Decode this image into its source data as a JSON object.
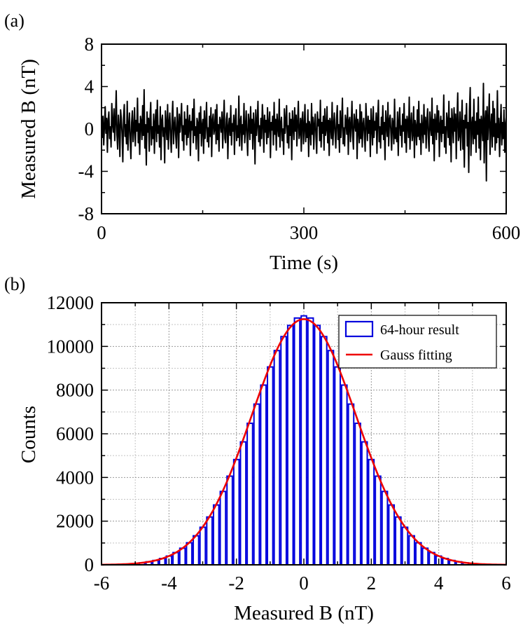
{
  "chart_data": [
    {
      "type": "line",
      "panel_label": "(a)",
      "xlabel": "Time (s)",
      "ylabel": "Measured B (nT)",
      "xlim": [
        0,
        600
      ],
      "ylim": [
        -8,
        8
      ],
      "xticks": [
        0,
        300,
        600
      ],
      "xtick_labels": [
        "0",
        "300",
        "600"
      ],
      "yticks": [
        -8,
        -4,
        0,
        4,
        8
      ],
      "ytick_labels": [
        "-8",
        "-4",
        "0",
        "4",
        "8"
      ],
      "grid": false,
      "series": [
        {
          "name": "Measured B",
          "color": "#000000",
          "values": [
            0.6,
            -0.8,
            1.2,
            -1.5,
            0.3,
            2.1,
            -0.4,
            1.0,
            -2.2,
            0.8,
            1.6,
            -0.9,
            0.2,
            -1.7,
            2.4,
            0.5,
            -0.3,
            1.9,
            -1.1,
            0.7,
            3.6,
            -0.6,
            -1.9,
            1.3,
            0.1,
            -2.6,
            1.8,
            0.9,
            -0.5,
            -3.1,
            1.1,
            2.3,
            -0.7,
            0.4,
            -1.4,
            2.6,
            -2.0,
            0.3,
            1.5,
            -0.9,
            -2.8,
            0.6,
            1.7,
            -1.2,
            0.0,
            2.0,
            -1.6,
            0.8,
            -0.2,
            2.9,
            -1.3,
            0.5,
            -2.4,
            1.2,
            0.7,
            -1.0,
            2.2,
            -0.6,
            3.7,
            -1.8,
            0.4,
            -3.4,
            1.6,
            -0.3,
            1.0,
            -2.1,
            0.9,
            2.5,
            -1.5,
            0.2,
            -0.9,
            1.4,
            -2.3,
            0.6,
            1.8,
            -1.2,
            2.7,
            -0.4,
            0.3,
            -1.7,
            2.1,
            -2.9,
            0.8,
            1.3,
            -0.7,
            0.1,
            -3.2,
            1.7,
            0.4,
            -1.0,
            2.3,
            -1.9,
            0.6,
            1.5,
            -0.8,
            -2.2,
            0.9,
            2.6,
            -1.4,
            0.2,
            1.1,
            -0.6,
            -1.8,
            2.0,
            0.5,
            -2.7,
            1.4,
            -0.3,
            0.8,
            2.4,
            -1.1,
            0.3,
            -2.0,
            1.6,
            -0.5,
            0.9,
            -1.5,
            2.2,
            -0.8,
            0.4,
            1.3,
            -2.5,
            0.7,
            -0.1,
            1.9,
            -1.3,
            2.8,
            -0.6,
            0.2,
            -1.9,
            1.0,
            0.6,
            -3.0,
            1.5,
            -0.4,
            2.1,
            -1.6,
            0.3,
            0.9,
            -2.3,
            1.7,
            -0.9,
            0.5,
            2.5,
            -1.2,
            0.1,
            -1.7,
            1.2,
            -0.7,
            2.0,
            -2.6,
            0.8,
            1.4,
            -0.5,
            0.0,
            1.8,
            -1.4,
            2.3,
            -1.0,
            0.4,
            -2.1,
            1.1,
            0.7,
            -0.3,
            1.6,
            -1.8,
            0.6,
            2.7,
            -0.9,
            -1.3,
            0.9,
            1.5,
            -2.8,
            0.2,
            1.0,
            -0.6,
            2.2,
            -1.5,
            0.5,
            -0.2,
            1.3,
            -2.4,
            0.8,
            1.9,
            -1.1,
            0.3,
            -0.8,
            3.1,
            -1.6,
            0.7,
            1.2,
            -2.0,
            0.4,
            -0.5,
            2.4,
            -1.3,
            0.1,
            1.7,
            -0.7,
            -2.5,
            1.4,
            0.6,
            -1.0,
            2.1,
            -0.4,
            0.9,
            -1.9,
            1.5,
            0.2,
            -3.3,
            1.8,
            -0.6,
            0.5,
            2.6,
            -1.2,
            0.3,
            -1.6,
            1.0,
            -0.9,
            2.3,
            0.7,
            -2.2,
            1.3,
            -0.3,
            0.8,
            -1.4,
            2.0,
            -0.8,
            0.4,
            1.6,
            -2.7,
            0.6,
            -0.1,
            1.2,
            -1.5,
            2.5,
            -0.5,
            0.9,
            -2.0,
            1.4,
            0.2,
            -0.7,
            2.8,
            -1.7,
            0.5,
            1.1,
            -1.1,
            0.0,
            -2.4,
            1.9,
            -0.4,
            0.7,
            2.2,
            -1.3,
            0.3,
            -1.8,
            1.5,
            -0.6,
            0.9,
            -2.9,
            1.7,
            0.4,
            -1.0,
            2.0,
            -0.2,
            1.3,
            -1.6,
            0.6,
            2.6,
            -0.9,
            -0.3,
            1.0,
            -2.1,
            0.8,
            1.6,
            -1.4,
            0.1,
            2.3,
            -1.2,
            0.5,
            -0.8,
            1.8,
            -2.6,
            0.7,
            0.2,
            -1.5,
            2.4,
            -0.5,
            1.1,
            -1.9,
            0.4,
            1.4,
            -0.7,
            -2.3,
            1.6,
            0.3,
            0.9,
            -1.1,
            2.7,
            -1.7,
            0.6,
            -0.4,
            1.2,
            -2.0,
            1.9,
            -0.6,
            0.0,
            2.1,
            -1.3,
            0.8,
            -2.5,
            1.0,
            0.5,
            -0.9,
            2.5,
            -1.5,
            0.2,
            1.5,
            -0.3,
            -1.8,
            0.9,
            2.2,
            -1.0,
            0.4,
            -2.2,
            1.7,
            -0.8,
            0.6,
            2.9,
            -1.4,
            0.1,
            -1.6,
            1.3,
            0.7,
            -0.5,
            2.0,
            -2.4,
            0.8,
            1.1,
            -1.2,
            0.3,
            2.6,
            -0.7,
            -1.9,
            1.4,
            0.5,
            -0.2,
            1.8,
            -2.8,
            0.9,
            0.2,
            -1.3,
            2.3,
            -0.9,
            1.6,
            -1.7,
            0.4,
            1.0,
            -0.6,
            -2.1,
            2.4,
            0.6,
            -1.1,
            1.2,
            -0.4,
            0.8,
            -2.6,
            1.9,
            0.3,
            -1.5,
            2.1,
            -0.8,
            0.7,
            -0.1,
            1.5,
            -2.3,
            0.9,
            2.7,
            -1.2,
            0.2,
            -1.8,
            1.1,
            -0.5,
            2.2,
            -1.0,
            0.6,
            -2.9,
            1.7,
            0.4,
            -0.7,
            2.5,
            -1.6,
            0.8,
            1.3,
            -0.3,
            -2.0,
            1.0,
            0.5,
            -1.4,
            2.8,
            -0.9,
            0.1,
            -1.2,
            1.6,
            -2.5,
            0.7,
            2.0,
            -0.6,
            0.3,
            -1.7,
            1.4,
            -0.2,
            2.4,
            -1.3,
            0.9,
            -2.2,
            1.2,
            0.6,
            -0.8,
            3.0,
            -1.9,
            0.4,
            1.5,
            -1.1,
            -0.4,
            2.1,
            -2.7,
            0.8,
            0.2,
            -1.5,
            1.8,
            -0.7,
            2.6,
            -1.0,
            0.5,
            -2.4,
            1.3,
            0.0,
            -1.3,
            2.3,
            -0.5,
            1.1,
            -1.8,
            0.7,
            1.9,
            -0.9,
            -2.1,
            1.6,
            0.3,
            -0.6,
            2.9,
            -1.4,
            0.9,
            -3.0,
            1.4,
            0.6,
            -1.0,
            2.2,
            -0.3,
            1.7,
            -2.6,
            0.4,
            1.2,
            -1.2,
            0.8,
            -0.4,
            3.2,
            -1.7,
            0.2,
            -2.3,
            1.5,
            0.7,
            -0.8,
            2.6,
            -1.5,
            1.0,
            -3.1,
            1.9,
            0.5,
            -1.3,
            2.0,
            -0.2,
            1.4,
            -2.8,
            0.9,
            3.4,
            -1.1,
            -0.6,
            1.6,
            -2.0,
            0.4,
            2.7,
            -1.9,
            0.8,
            -3.6,
            1.3,
            0.1,
            2.4,
            -1.6,
            0.6,
            -4.1,
            1.8,
            3.9,
            -2.5,
            0.3,
            1.1,
            -1.4,
            2.8,
            -0.9,
            0.7,
            -2.2,
            1.5,
            -0.5,
            3.0,
            -1.8,
            0.9,
            -2.9,
            1.2,
            0.4,
            -1.1,
            4.3,
            -3.2,
            0.6,
            1.7,
            -4.9,
            2.1,
            -1.0,
            0.8,
            3.3,
            -2.4,
            0.2,
            1.4,
            -1.7,
            2.6,
            -0.7,
            1.9,
            -2.0,
            0.5,
            -1.3,
            3.6,
            -0.8,
            1.0,
            -2.6,
            0.3,
            2.3,
            -1.5,
            0.6,
            -0.9,
            1.8,
            -2.2,
            0.4,
            1.1
          ]
        }
      ]
    },
    {
      "type": "bar",
      "panel_label": "(b)",
      "xlabel": "Measured B (nT)",
      "ylabel": "Counts",
      "xlim": [
        -6,
        6
      ],
      "ylim": [
        0,
        12000
      ],
      "xticks": [
        -6,
        -4,
        -2,
        0,
        2,
        4,
        6
      ],
      "xtick_labels": [
        "-6",
        "-4",
        "-2",
        "0",
        "2",
        "4",
        "6"
      ],
      "yticks": [
        0,
        2000,
        4000,
        6000,
        8000,
        10000,
        12000
      ],
      "ytick_labels": [
        "0",
        "2000",
        "4000",
        "6000",
        "8000",
        "10000",
        "12000"
      ],
      "grid": true,
      "legend": {
        "position": "top-right",
        "entries": [
          "64-hour result",
          "Gauss fitting"
        ]
      },
      "histogram": {
        "name": "64-hour result",
        "color": "#0000dd",
        "bin_width": 0.2,
        "bin_centers": [
          -4.8,
          -4.6,
          -4.4,
          -4.2,
          -4.0,
          -3.8,
          -3.6,
          -3.4,
          -3.2,
          -3.0,
          -2.8,
          -2.6,
          -2.4,
          -2.2,
          -2.0,
          -1.8,
          -1.6,
          -1.4,
          -1.2,
          -1.0,
          -0.8,
          -0.6,
          -0.4,
          -0.2,
          0.0,
          0.2,
          0.4,
          0.6,
          0.8,
          1.0,
          1.2,
          1.4,
          1.6,
          1.8,
          2.0,
          2.2,
          2.4,
          2.6,
          2.8,
          3.0,
          3.2,
          3.4,
          3.6,
          3.8,
          4.0,
          4.2,
          4.4,
          4.6,
          4.8
        ],
        "counts": [
          90,
          140,
          200,
          290,
          400,
          560,
          760,
          1010,
          1330,
          1720,
          2190,
          2740,
          3360,
          4060,
          4820,
          5630,
          6480,
          7360,
          8230,
          9060,
          9810,
          10450,
          10960,
          11300,
          11400,
          11300,
          10960,
          10450,
          9810,
          9060,
          8230,
          7360,
          6480,
          5630,
          4820,
          4060,
          3360,
          2740,
          2190,
          1720,
          1330,
          1010,
          760,
          560,
          400,
          290,
          200,
          140,
          90
        ]
      },
      "fit": {
        "name": "Gauss fitting",
        "color": "#ee0000",
        "amplitude": 11250,
        "mean": 0.0,
        "sigma": 1.55,
        "x_range": [
          -6,
          6
        ]
      }
    }
  ]
}
